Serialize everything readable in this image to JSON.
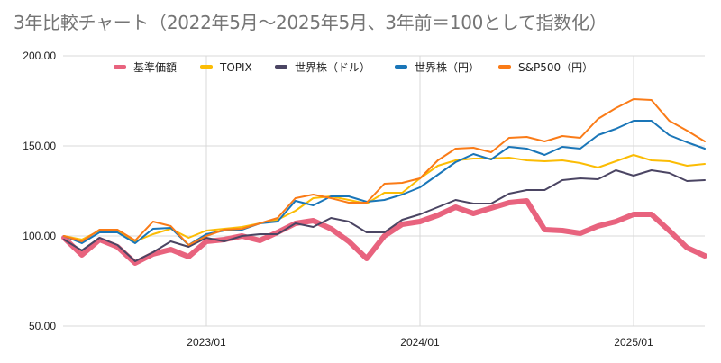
{
  "chart_data": {
    "type": "line",
    "title": "3年比較チャート（2022年5月〜2025年5月、3年前＝100として指数化）",
    "xlabel": "",
    "ylabel": "",
    "ylim": [
      50,
      200
    ],
    "yticks": [
      "200.00",
      "150.00",
      "100.00",
      "50.00"
    ],
    "ytick_values": [
      200,
      150,
      100,
      50
    ],
    "xticks": [
      {
        "label": "2023/01",
        "index": 8
      },
      {
        "label": "2024/01",
        "index": 20
      },
      {
        "label": "2025/01",
        "index": 32
      }
    ],
    "grid": true,
    "legend_position": "top",
    "x": [
      "2022/05",
      "2022/06",
      "2022/07",
      "2022/08",
      "2022/09",
      "2022/10",
      "2022/11",
      "2022/12",
      "2023/01",
      "2023/02",
      "2023/03",
      "2023/04",
      "2023/05",
      "2023/06",
      "2023/07",
      "2023/08",
      "2023/09",
      "2023/10",
      "2023/11",
      "2023/12",
      "2024/01",
      "2024/02",
      "2024/03",
      "2024/04",
      "2024/05",
      "2024/06",
      "2024/07",
      "2024/08",
      "2024/09",
      "2024/10",
      "2024/11",
      "2024/12",
      "2025/01",
      "2025/02",
      "2025/03",
      "2025/04",
      "2025/05"
    ],
    "series": [
      {
        "name": "基準価額",
        "color": "#e8637e",
        "values": [
          99,
          89.5,
          98,
          94,
          85,
          90,
          92.5,
          88.5,
          97,
          98,
          100,
          97.5,
          102,
          107,
          108.5,
          104,
          97,
          87.5,
          100,
          106.5,
          108,
          111.5,
          116,
          112.5,
          115.5,
          118.5,
          119.5,
          103.5,
          103,
          101.5,
          105.5,
          108,
          112,
          112,
          103,
          93.5,
          89
        ]
      },
      {
        "name": "TOPIX",
        "color": "#fbbc04",
        "values": [
          100,
          98,
          103,
          103,
          97,
          101,
          104,
          99,
          103,
          104,
          105,
          107,
          109,
          114,
          121,
          122,
          120,
          118,
          124,
          124,
          132,
          139,
          142,
          143,
          143,
          143.5,
          142,
          141.5,
          142,
          140.5,
          138,
          141.5,
          145,
          142,
          141.5,
          139,
          140
        ]
      },
      {
        "name": "世界株（ドル）",
        "color": "#4b4563",
        "values": [
          98,
          92,
          99,
          95,
          86,
          91,
          97,
          94,
          99,
          97,
          100,
          101,
          101,
          107,
          105,
          110,
          108,
          102,
          102,
          109,
          112,
          116,
          120,
          118,
          118,
          123.5,
          125.5,
          125.5,
          131,
          132,
          131.5,
          136.5,
          133.5,
          136.5,
          135,
          130.5,
          131
        ]
      },
      {
        "name": "世界株（円）",
        "color": "#1a76b8",
        "values": [
          100,
          96,
          102,
          102,
          96,
          104,
          104.5,
          95,
          101,
          103,
          103.5,
          107,
          108,
          119.5,
          117,
          122,
          122,
          119,
          120,
          123,
          127,
          134,
          141,
          145.5,
          142.5,
          149.5,
          148.5,
          145,
          149.5,
          148.5,
          156,
          159.5,
          164,
          164,
          156,
          152,
          148.5
        ]
      },
      {
        "name": "S&P500（円）",
        "color": "#fa7b17",
        "values": [
          100,
          97,
          103.5,
          103.5,
          97.5,
          108,
          105.5,
          95,
          100,
          103.5,
          104,
          107,
          110,
          121,
          123,
          121,
          118.5,
          118.5,
          129,
          129.5,
          132,
          142,
          148.5,
          149,
          146.5,
          154.5,
          155,
          152.5,
          155.5,
          154.5,
          165,
          171,
          176,
          175.5,
          164,
          158.5,
          152.5
        ]
      }
    ]
  }
}
